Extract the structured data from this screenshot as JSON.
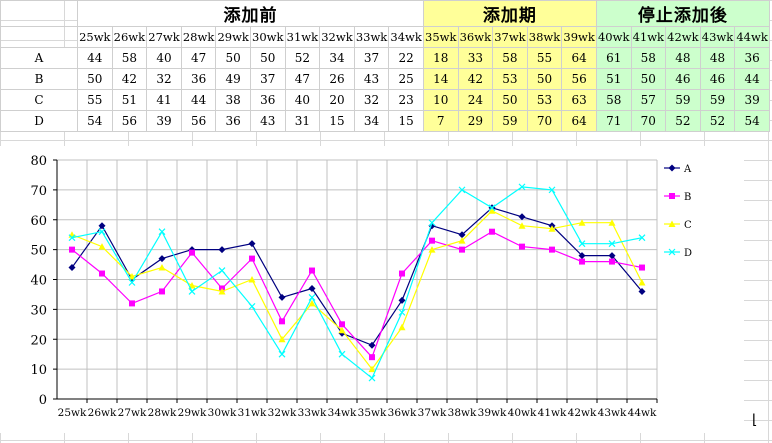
{
  "table": {
    "groups": [
      {
        "label": "添加前",
        "span": 10,
        "tone": "white"
      },
      {
        "label": "添加期",
        "span": 5,
        "tone": "yellow"
      },
      {
        "label": "停止添加後",
        "span": 5,
        "tone": "green"
      }
    ],
    "weeks": [
      "25wk",
      "26wk",
      "27wk",
      "28wk",
      "29wk",
      "30wk",
      "31wk",
      "32wk",
      "33wk",
      "34wk",
      "35wk",
      "36wk",
      "37wk",
      "38wk",
      "39wk",
      "40wk",
      "41wk",
      "42wk",
      "43wk",
      "44wk"
    ],
    "rows": [
      {
        "name": "A",
        "values": [
          44,
          58,
          40,
          47,
          50,
          50,
          52,
          34,
          37,
          22,
          18,
          33,
          58,
          55,
          64,
          61,
          58,
          48,
          48,
          36
        ]
      },
      {
        "name": "B",
        "values": [
          50,
          42,
          32,
          36,
          49,
          37,
          47,
          26,
          43,
          25,
          14,
          42,
          53,
          50,
          56,
          51,
          50,
          46,
          46,
          44
        ]
      },
      {
        "name": "C",
        "values": [
          55,
          51,
          41,
          44,
          38,
          36,
          40,
          20,
          32,
          23,
          10,
          24,
          50,
          53,
          63,
          58,
          57,
          59,
          59,
          39
        ]
      },
      {
        "name": "D",
        "values": [
          54,
          56,
          39,
          56,
          36,
          43,
          31,
          15,
          34,
          15,
          7,
          29,
          59,
          70,
          64,
          71,
          70,
          52,
          52,
          54
        ]
      }
    ]
  },
  "chart_data": {
    "type": "line",
    "x": [
      "25wk",
      "26wk",
      "27wk",
      "28wk",
      "29wk",
      "30wk",
      "31wk",
      "32wk",
      "33wk",
      "34wk",
      "35wk",
      "36wk",
      "37wk",
      "38wk",
      "39wk",
      "40wk",
      "41wk",
      "42wk",
      "43wk",
      "44wk"
    ],
    "ylim": [
      0,
      80
    ],
    "yticks": [
      0,
      10,
      20,
      30,
      40,
      50,
      60,
      70,
      80
    ],
    "grid": true,
    "legend_position": "right",
    "series": [
      {
        "name": "A",
        "color": "#000080",
        "marker": "diamond",
        "values": [
          44,
          58,
          40,
          47,
          50,
          50,
          52,
          34,
          37,
          22,
          18,
          33,
          58,
          55,
          64,
          61,
          58,
          48,
          48,
          36
        ]
      },
      {
        "name": "B",
        "color": "#ff00ff",
        "marker": "square",
        "values": [
          50,
          42,
          32,
          36,
          49,
          37,
          47,
          26,
          43,
          25,
          14,
          42,
          53,
          50,
          56,
          51,
          50,
          46,
          46,
          44
        ]
      },
      {
        "name": "C",
        "color": "#ffff00",
        "marker": "triangle",
        "values": [
          55,
          51,
          41,
          44,
          38,
          36,
          40,
          20,
          32,
          23,
          10,
          24,
          50,
          53,
          63,
          58,
          57,
          59,
          59,
          39
        ]
      },
      {
        "name": "D",
        "color": "#00ffff",
        "marker": "x",
        "values": [
          54,
          56,
          39,
          56,
          36,
          43,
          31,
          15,
          34,
          15,
          7,
          29,
          59,
          70,
          64,
          71,
          70,
          52,
          52,
          54
        ]
      }
    ],
    "legend_labels": [
      "A",
      "B",
      "C",
      "D"
    ]
  }
}
